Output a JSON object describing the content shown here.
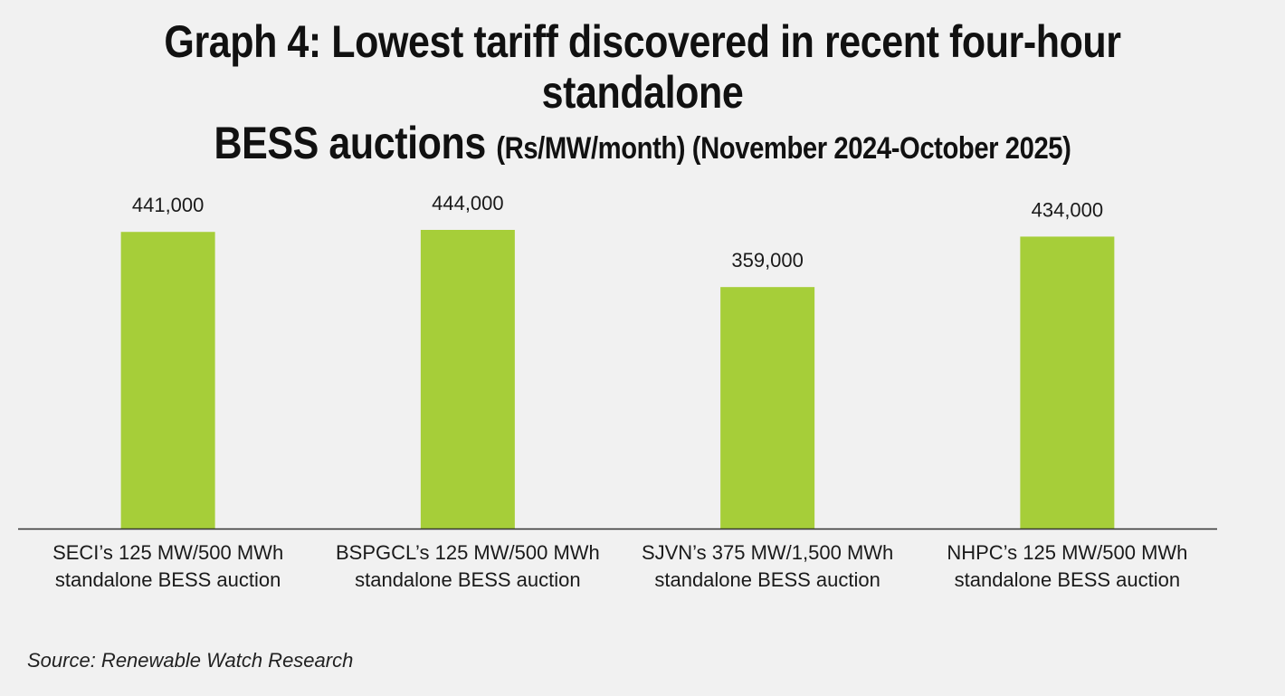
{
  "title": {
    "line1": "Graph 4: Lowest tariff discovered in recent four-hour standalone",
    "line2_main": "BESS auctions",
    "line2_sub": "(Rs/MW/month) (November 2024-October 2025)"
  },
  "source": "Source: Renewable Watch Research",
  "chart_data": {
    "type": "bar",
    "title": "Graph 4: Lowest tariff discovered in recent four-hour standalone BESS auctions (Rs/MW/month) (November 2024-October 2025)",
    "categories": [
      [
        "SECI’s  125 MW/500 MWh",
        "standalone BESS auction"
      ],
      [
        "BSPGCL’s 125 MW/500 MWh",
        "standalone BESS auction"
      ],
      [
        "SJVN’s 375 MW/1,500 MWh",
        "standalone BESS auction"
      ],
      [
        "NHPC’s 125 MW/500 MWh",
        "standalone BESS auction"
      ]
    ],
    "values": [
      441000,
      444000,
      359000,
      434000
    ],
    "value_labels": [
      "441,000",
      "444,000",
      "359,000",
      "434,000"
    ],
    "ylim": [
      0,
      444000
    ],
    "xlabel": "",
    "ylabel": "",
    "grid": false,
    "bar_color": "#a6ce39",
    "axis_color": "#333333"
  }
}
